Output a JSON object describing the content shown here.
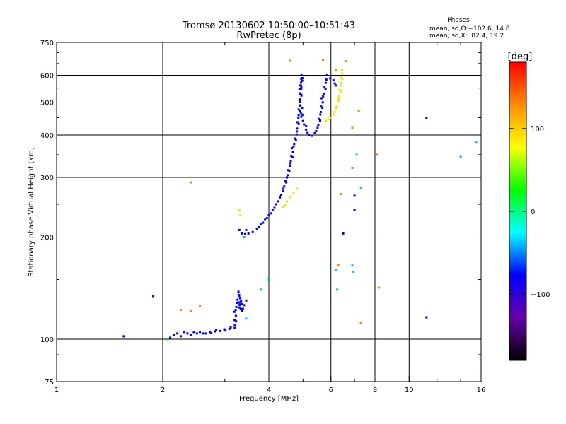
{
  "chart_data": {
    "type": "scatter",
    "title": "Tromsø 20130602 10:50:00–10:51:43",
    "subtitle": "RwPretec (8p)",
    "xlabel": "Frequency [MHz]",
    "ylabel": "Stationary phase Virtual Height [km]",
    "x_scale": "log",
    "y_scale": "log",
    "xlim": [
      1,
      16
    ],
    "ylim": [
      75,
      750
    ],
    "x_ticks": [
      1,
      2,
      4,
      6,
      8,
      10,
      16
    ],
    "x_tick_labels": [
      "1",
      "2",
      "4",
      "6",
      "8",
      "10",
      "16"
    ],
    "y_ticks": [
      75,
      100,
      200,
      300,
      400,
      500,
      600,
      750
    ],
    "y_tick_labels": [
      "75",
      "100",
      "200",
      "300",
      "400",
      "500",
      "600",
      "750"
    ],
    "grid": true,
    "phase_stats": {
      "heading": "Phases",
      "line_o": "mean, sd,O:−102.6, 14.8",
      "line_x": "mean, sd,X:  82.4, 19.2"
    },
    "colorbar": {
      "label": "[deg]",
      "range": [
        -180,
        180
      ],
      "ticks": [
        100,
        0,
        -100
      ],
      "tick_labels": [
        "100",
        "0",
        "−100"
      ],
      "colors": [
        "#ff0000",
        "#ff8c00",
        "#ffff00",
        "#00ff00",
        "#00ffff",
        "#0000ff",
        "#6600aa",
        "#000000"
      ]
    },
    "series": [
      {
        "mode": "O",
        "color": "#0000ee",
        "points": [
          [
            1.55,
            102
          ],
          [
            1.88,
            134
          ],
          [
            2.1,
            101
          ],
          [
            2.15,
            103
          ],
          [
            2.2,
            104
          ],
          [
            2.25,
            102
          ],
          [
            2.3,
            105
          ],
          [
            2.35,
            104
          ],
          [
            2.4,
            103
          ],
          [
            2.45,
            105
          ],
          [
            2.5,
            104
          ],
          [
            2.55,
            105
          ],
          [
            2.6,
            104
          ],
          [
            3.2,
            108
          ],
          [
            3.22,
            122
          ],
          [
            3.25,
            128
          ],
          [
            3.28,
            138
          ],
          [
            3.3,
            124
          ],
          [
            3.32,
            132
          ],
          [
            3.35,
            121
          ],
          [
            3.4,
            126
          ],
          [
            3.45,
            130
          ],
          [
            3.3,
            210
          ],
          [
            3.35,
            205
          ],
          [
            3.4,
            200
          ],
          [
            3.45,
            210
          ],
          [
            3.5,
            205
          ],
          [
            3.6,
            207
          ],
          [
            3.7,
            212
          ],
          [
            3.8,
            218
          ],
          [
            3.9,
            225
          ],
          [
            4.0,
            232
          ],
          [
            4.1,
            240
          ],
          [
            4.2,
            250
          ],
          [
            4.3,
            262
          ],
          [
            4.4,
            278
          ],
          [
            4.5,
            300
          ],
          [
            4.6,
            330
          ],
          [
            4.7,
            370
          ],
          [
            4.8,
            410
          ],
          [
            4.85,
            450
          ],
          [
            4.9,
            500
          ],
          [
            4.93,
            560
          ],
          [
            4.95,
            600
          ],
          [
            4.9,
            500
          ],
          [
            5.0,
            440
          ],
          [
            5.1,
            415
          ],
          [
            5.2,
            400
          ],
          [
            5.3,
            398
          ],
          [
            5.4,
            405
          ],
          [
            5.5,
            420
          ],
          [
            5.6,
            460
          ],
          [
            5.7,
            520
          ],
          [
            5.8,
            570
          ],
          [
            5.85,
            600
          ],
          [
            6.1,
            580
          ],
          [
            6.2,
            560
          ],
          [
            6.5,
            205
          ]
        ]
      },
      {
        "mode": "X",
        "color": "#e6e600",
        "points": [
          [
            3.3,
            240
          ],
          [
            3.32,
            232
          ],
          [
            4.4,
            245
          ],
          [
            4.5,
            255
          ],
          [
            4.6,
            262
          ],
          [
            4.7,
            270
          ],
          [
            4.8,
            278
          ],
          [
            5.8,
            440
          ],
          [
            5.9,
            445
          ],
          [
            6.0,
            450
          ],
          [
            6.1,
            460
          ],
          [
            6.2,
            480
          ],
          [
            6.3,
            510
          ],
          [
            6.4,
            560
          ],
          [
            6.45,
            620
          ]
        ]
      },
      {
        "mode": "scatter",
        "color": "#ff7f00",
        "points": [
          [
            2.25,
            122
          ],
          [
            2.4,
            121
          ],
          [
            2.55,
            125
          ],
          [
            2.4,
            290
          ],
          [
            4.6,
            662
          ],
          [
            5.7,
            666
          ],
          [
            6.2,
            620
          ],
          [
            6.6,
            660
          ],
          [
            6.3,
            165
          ],
          [
            6.9,
            420
          ],
          [
            7.2,
            470
          ],
          [
            8.1,
            350
          ],
          [
            8.2,
            142
          ],
          [
            7.3,
            112
          ],
          [
            6.4,
            268
          ]
        ]
      },
      {
        "mode": "scatter",
        "color": "#00cc66",
        "points": [
          [
            2.05,
            100
          ],
          [
            3.4,
            200
          ],
          [
            3.8,
            140
          ],
          [
            4.0,
            150
          ]
        ]
      },
      {
        "mode": "scatter",
        "color": "#00bbff",
        "points": [
          [
            3.45,
            115
          ],
          [
            6.2,
            160
          ],
          [
            6.25,
            140
          ],
          [
            6.9,
            165
          ],
          [
            6.95,
            158
          ],
          [
            6.9,
            320
          ],
          [
            7.1,
            350
          ],
          [
            7.3,
            280
          ],
          [
            14.0,
            345
          ],
          [
            15.5,
            380
          ]
        ]
      },
      {
        "mode": "scatter",
        "color": "#0000cc",
        "points": [
          [
            11.2,
            450
          ],
          [
            11.2,
            116
          ],
          [
            7.0,
            240
          ],
          [
            7.0,
            265
          ]
        ]
      }
    ]
  }
}
